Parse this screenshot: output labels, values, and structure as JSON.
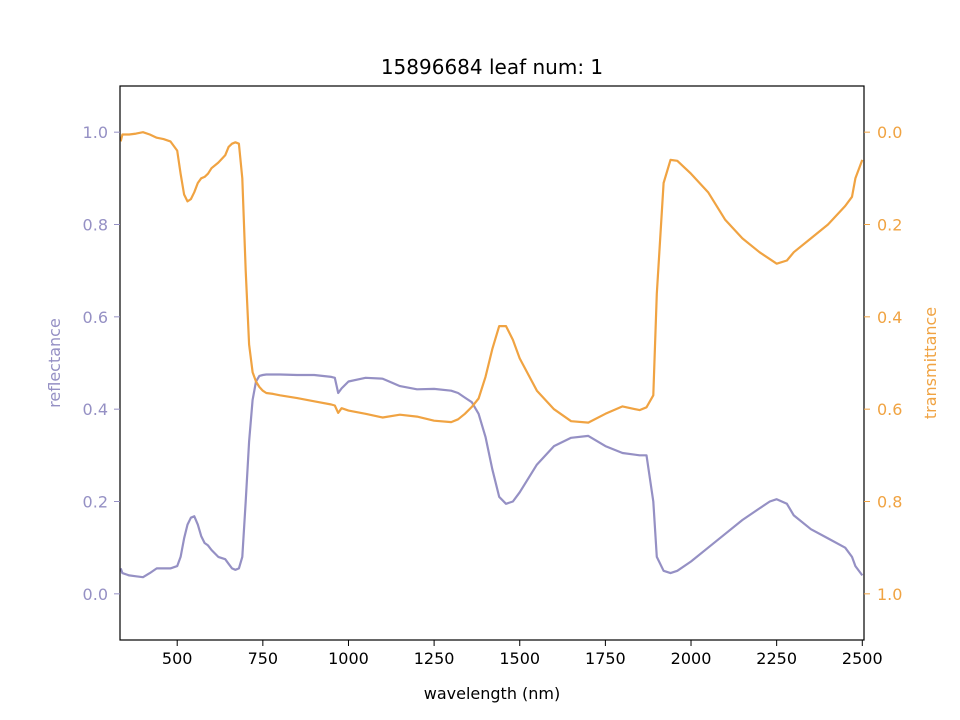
{
  "chart_data": {
    "type": "line",
    "title": "15896684 leaf num: 1",
    "xlabel": "wavelength (nm)",
    "ylabel_left": "reflectance",
    "ylabel_right": "transmittance",
    "xlim": [
      333,
      2505
    ],
    "ylim_left": [
      -0.1,
      1.1
    ],
    "ylim_right": [
      1.1,
      -0.1
    ],
    "right_axis_inverted": true,
    "grid": false,
    "x_ticks": [
      500,
      750,
      1000,
      1250,
      1500,
      1750,
      2000,
      2250,
      2500
    ],
    "x_tick_labels": [
      "500",
      "750",
      "1000",
      "1250",
      "1500",
      "1750",
      "2000",
      "2250",
      "2500"
    ],
    "y_left_ticks": [
      0.0,
      0.2,
      0.4,
      0.6,
      0.8,
      1.0
    ],
    "y_left_tick_labels": [
      "0.0",
      "0.2",
      "0.4",
      "0.6",
      "0.8",
      "1.0"
    ],
    "y_right_ticks": [
      0.0,
      0.2,
      0.4,
      0.6,
      0.8,
      1.0
    ],
    "y_right_tick_labels": [
      "0.0",
      "0.2",
      "0.4",
      "0.6",
      "0.8",
      "1.0"
    ],
    "colors": {
      "reflectance": "#9590c4",
      "transmittance": "#f0a342",
      "axes": "#000000"
    },
    "series": [
      {
        "axis": "left",
        "x": [
          335,
          340,
          360,
          380,
          400,
          420,
          440,
          460,
          480,
          500,
          510,
          520,
          530,
          540,
          550,
          560,
          570,
          580,
          590,
          600,
          620,
          640,
          650,
          660,
          670,
          680,
          690,
          700,
          710,
          720,
          730,
          740,
          750,
          760,
          780,
          800,
          850,
          900,
          950,
          960,
          970,
          980,
          1000,
          1050,
          1100,
          1150,
          1200,
          1250,
          1300,
          1320,
          1340,
          1360,
          1380,
          1400,
          1420,
          1440,
          1460,
          1480,
          1500,
          1550,
          1600,
          1650,
          1700,
          1750,
          1800,
          1850,
          1870,
          1890,
          1900,
          1920,
          1940,
          1960,
          2000,
          2050,
          2100,
          2150,
          2200,
          2230,
          2250,
          2280,
          2300,
          2350,
          2400,
          2450,
          2470,
          2480,
          2500
        ],
        "y": [
          0.055,
          0.045,
          0.04,
          0.038,
          0.036,
          0.045,
          0.055,
          0.055,
          0.055,
          0.06,
          0.08,
          0.12,
          0.15,
          0.165,
          0.168,
          0.15,
          0.125,
          0.11,
          0.105,
          0.095,
          0.08,
          0.075,
          0.065,
          0.055,
          0.052,
          0.055,
          0.08,
          0.2,
          0.33,
          0.42,
          0.46,
          0.472,
          0.474,
          0.475,
          0.475,
          0.475,
          0.474,
          0.474,
          0.47,
          0.468,
          0.435,
          0.445,
          0.46,
          0.468,
          0.466,
          0.45,
          0.443,
          0.444,
          0.44,
          0.435,
          0.425,
          0.415,
          0.39,
          0.34,
          0.27,
          0.21,
          0.195,
          0.2,
          0.22,
          0.28,
          0.32,
          0.338,
          0.342,
          0.32,
          0.305,
          0.3,
          0.3,
          0.2,
          0.08,
          0.05,
          0.045,
          0.05,
          0.07,
          0.1,
          0.13,
          0.16,
          0.185,
          0.2,
          0.205,
          0.195,
          0.17,
          0.14,
          0.12,
          0.1,
          0.08,
          0.06,
          0.04
        ]
      },
      {
        "axis": "right",
        "x": [
          335,
          340,
          360,
          380,
          400,
          420,
          440,
          460,
          480,
          500,
          510,
          520,
          530,
          540,
          550,
          560,
          570,
          580,
          590,
          600,
          620,
          640,
          650,
          660,
          670,
          680,
          690,
          700,
          710,
          720,
          730,
          740,
          750,
          760,
          780,
          800,
          850,
          900,
          950,
          960,
          970,
          980,
          1000,
          1050,
          1100,
          1150,
          1200,
          1250,
          1300,
          1320,
          1340,
          1360,
          1380,
          1400,
          1420,
          1440,
          1460,
          1480,
          1500,
          1550,
          1600,
          1650,
          1700,
          1750,
          1800,
          1850,
          1870,
          1890,
          1900,
          1920,
          1940,
          1960,
          2000,
          2050,
          2100,
          2150,
          2200,
          2230,
          2250,
          2280,
          2300,
          2350,
          2400,
          2450,
          2470,
          2480,
          2500
        ],
        "y": [
          0.02,
          0.005,
          0.005,
          0.003,
          0.0,
          0.005,
          0.012,
          0.015,
          0.02,
          0.04,
          0.09,
          0.135,
          0.15,
          0.145,
          0.13,
          0.11,
          0.1,
          0.097,
          0.09,
          0.078,
          0.066,
          0.05,
          0.032,
          0.025,
          0.022,
          0.025,
          0.1,
          0.3,
          0.46,
          0.52,
          0.54,
          0.552,
          0.56,
          0.565,
          0.567,
          0.57,
          0.576,
          0.583,
          0.59,
          0.592,
          0.608,
          0.598,
          0.603,
          0.61,
          0.618,
          0.612,
          0.616,
          0.625,
          0.628,
          0.622,
          0.61,
          0.595,
          0.577,
          0.53,
          0.47,
          0.42,
          0.42,
          0.45,
          0.49,
          0.56,
          0.6,
          0.626,
          0.629,
          0.61,
          0.594,
          0.602,
          0.596,
          0.57,
          0.35,
          0.11,
          0.06,
          0.062,
          0.09,
          0.13,
          0.19,
          0.23,
          0.26,
          0.275,
          0.285,
          0.278,
          0.26,
          0.23,
          0.2,
          0.16,
          0.14,
          0.1,
          0.06
        ]
      }
    ]
  }
}
